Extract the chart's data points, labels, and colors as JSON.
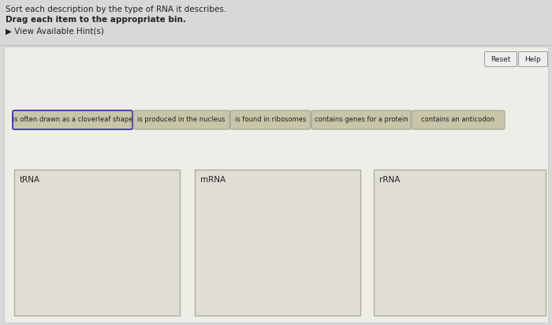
{
  "title_line1": "Sort each description by the type of RNA it describes.",
  "title_line2": "Drag each item to the appropriate bin.",
  "title_line3": "▶ View Available Hint(s)",
  "header_bg": "#d8d8d8",
  "inner_bg": "#eeeee8",
  "button_labels": [
    "is often drawn as a cloverleaf shape",
    "is produced in the nucleus",
    "is found in ribosomes",
    "contains genes for a protein",
    "contains an anticodon"
  ],
  "button_bg": "#c8c5a8",
  "button_border": "#999990",
  "first_button_border": "#4444aa",
  "bin_labels": [
    "tRNA",
    "mRNA",
    "rRNA"
  ],
  "bin_bg": "#e0ddd4",
  "bin_border": "#aaa898",
  "reset_label": "Reset",
  "help_label": "Help",
  "util_btn_bg": "#eeeeee",
  "util_btn_border": "#999999",
  "text_color": "#222222",
  "sep_color": "#bbbbbb"
}
